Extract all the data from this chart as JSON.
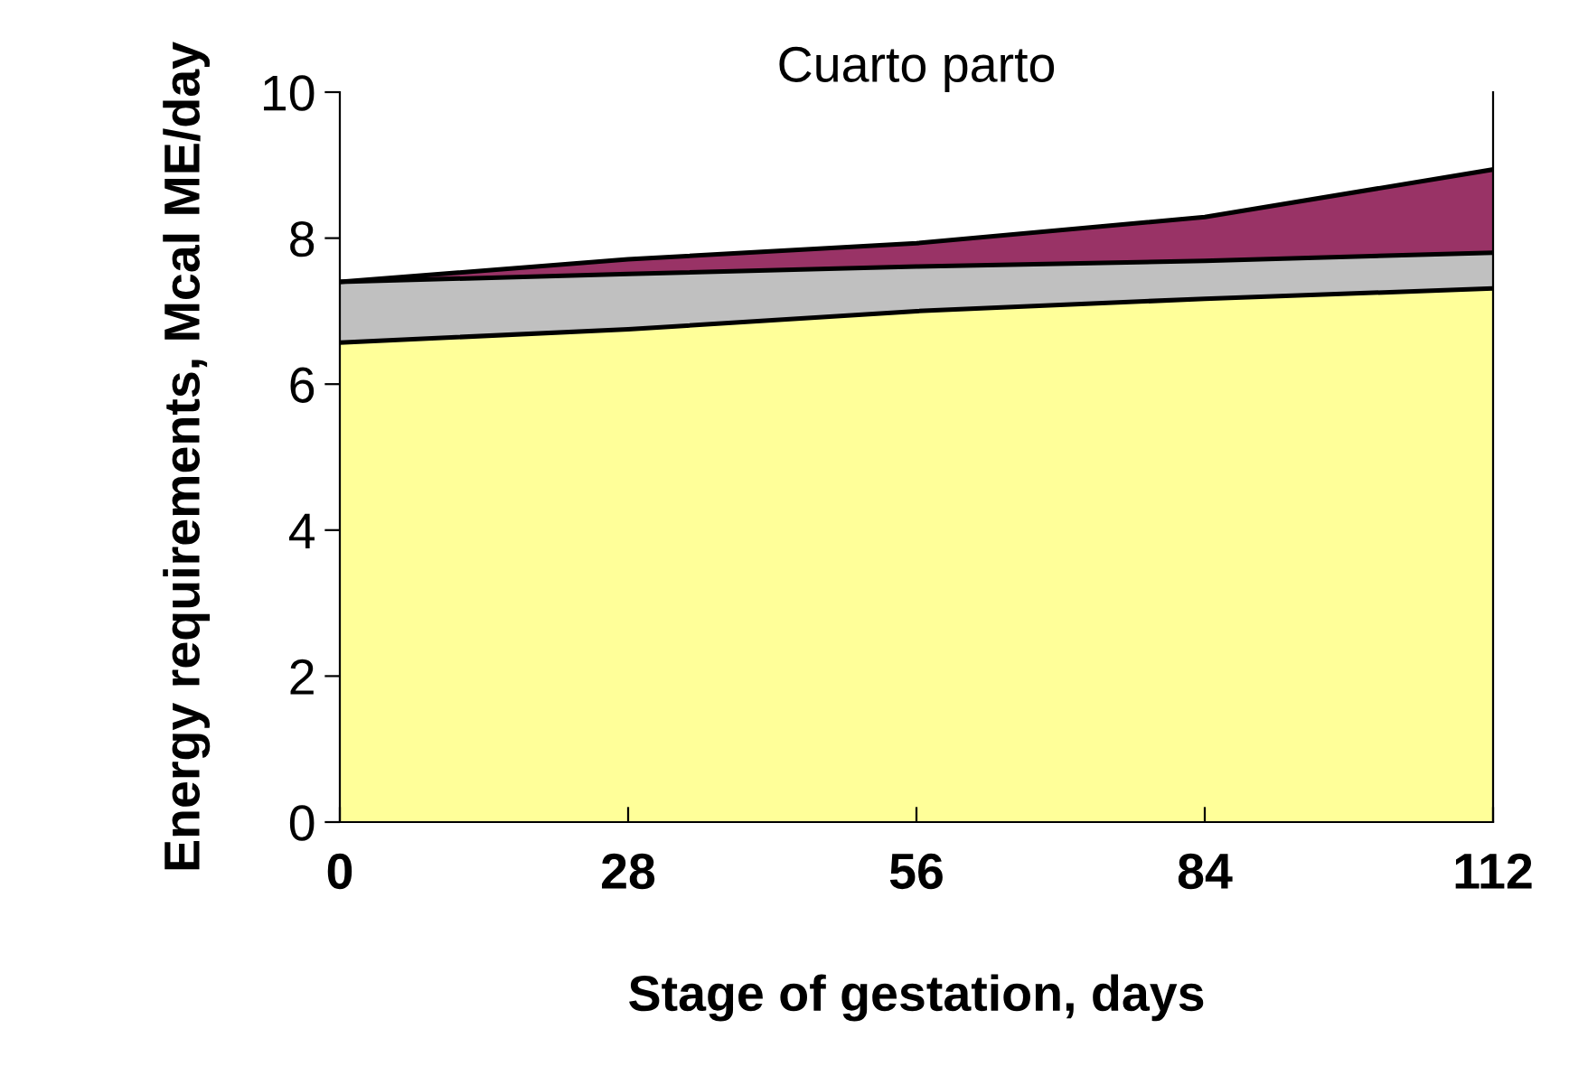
{
  "chart_data": {
    "type": "area",
    "title": "Cuarto parto",
    "xlabel": "Stage of gestation, days",
    "ylabel": "Energy requirements, Mcal ME/day",
    "x": [
      0,
      28,
      56,
      84,
      112
    ],
    "stacked": true,
    "series": [
      {
        "color": "#ffff99",
        "values": [
          6.57,
          6.75,
          7.0,
          7.17,
          7.31
        ]
      },
      {
        "color": "#c0c0c0",
        "values": [
          0.83,
          0.76,
          0.61,
          0.52,
          0.49
        ]
      },
      {
        "color": "#993366",
        "values": [
          0,
          0.2,
          0.32,
          0.6,
          1.14
        ]
      }
    ],
    "xlim": [
      0,
      112
    ],
    "xticks": [
      0,
      28,
      56,
      84,
      112
    ],
    "ylim": [
      0,
      10
    ],
    "yticks": [
      0,
      2,
      4,
      6,
      8,
      10
    ],
    "grid": false,
    "legend": false
  }
}
